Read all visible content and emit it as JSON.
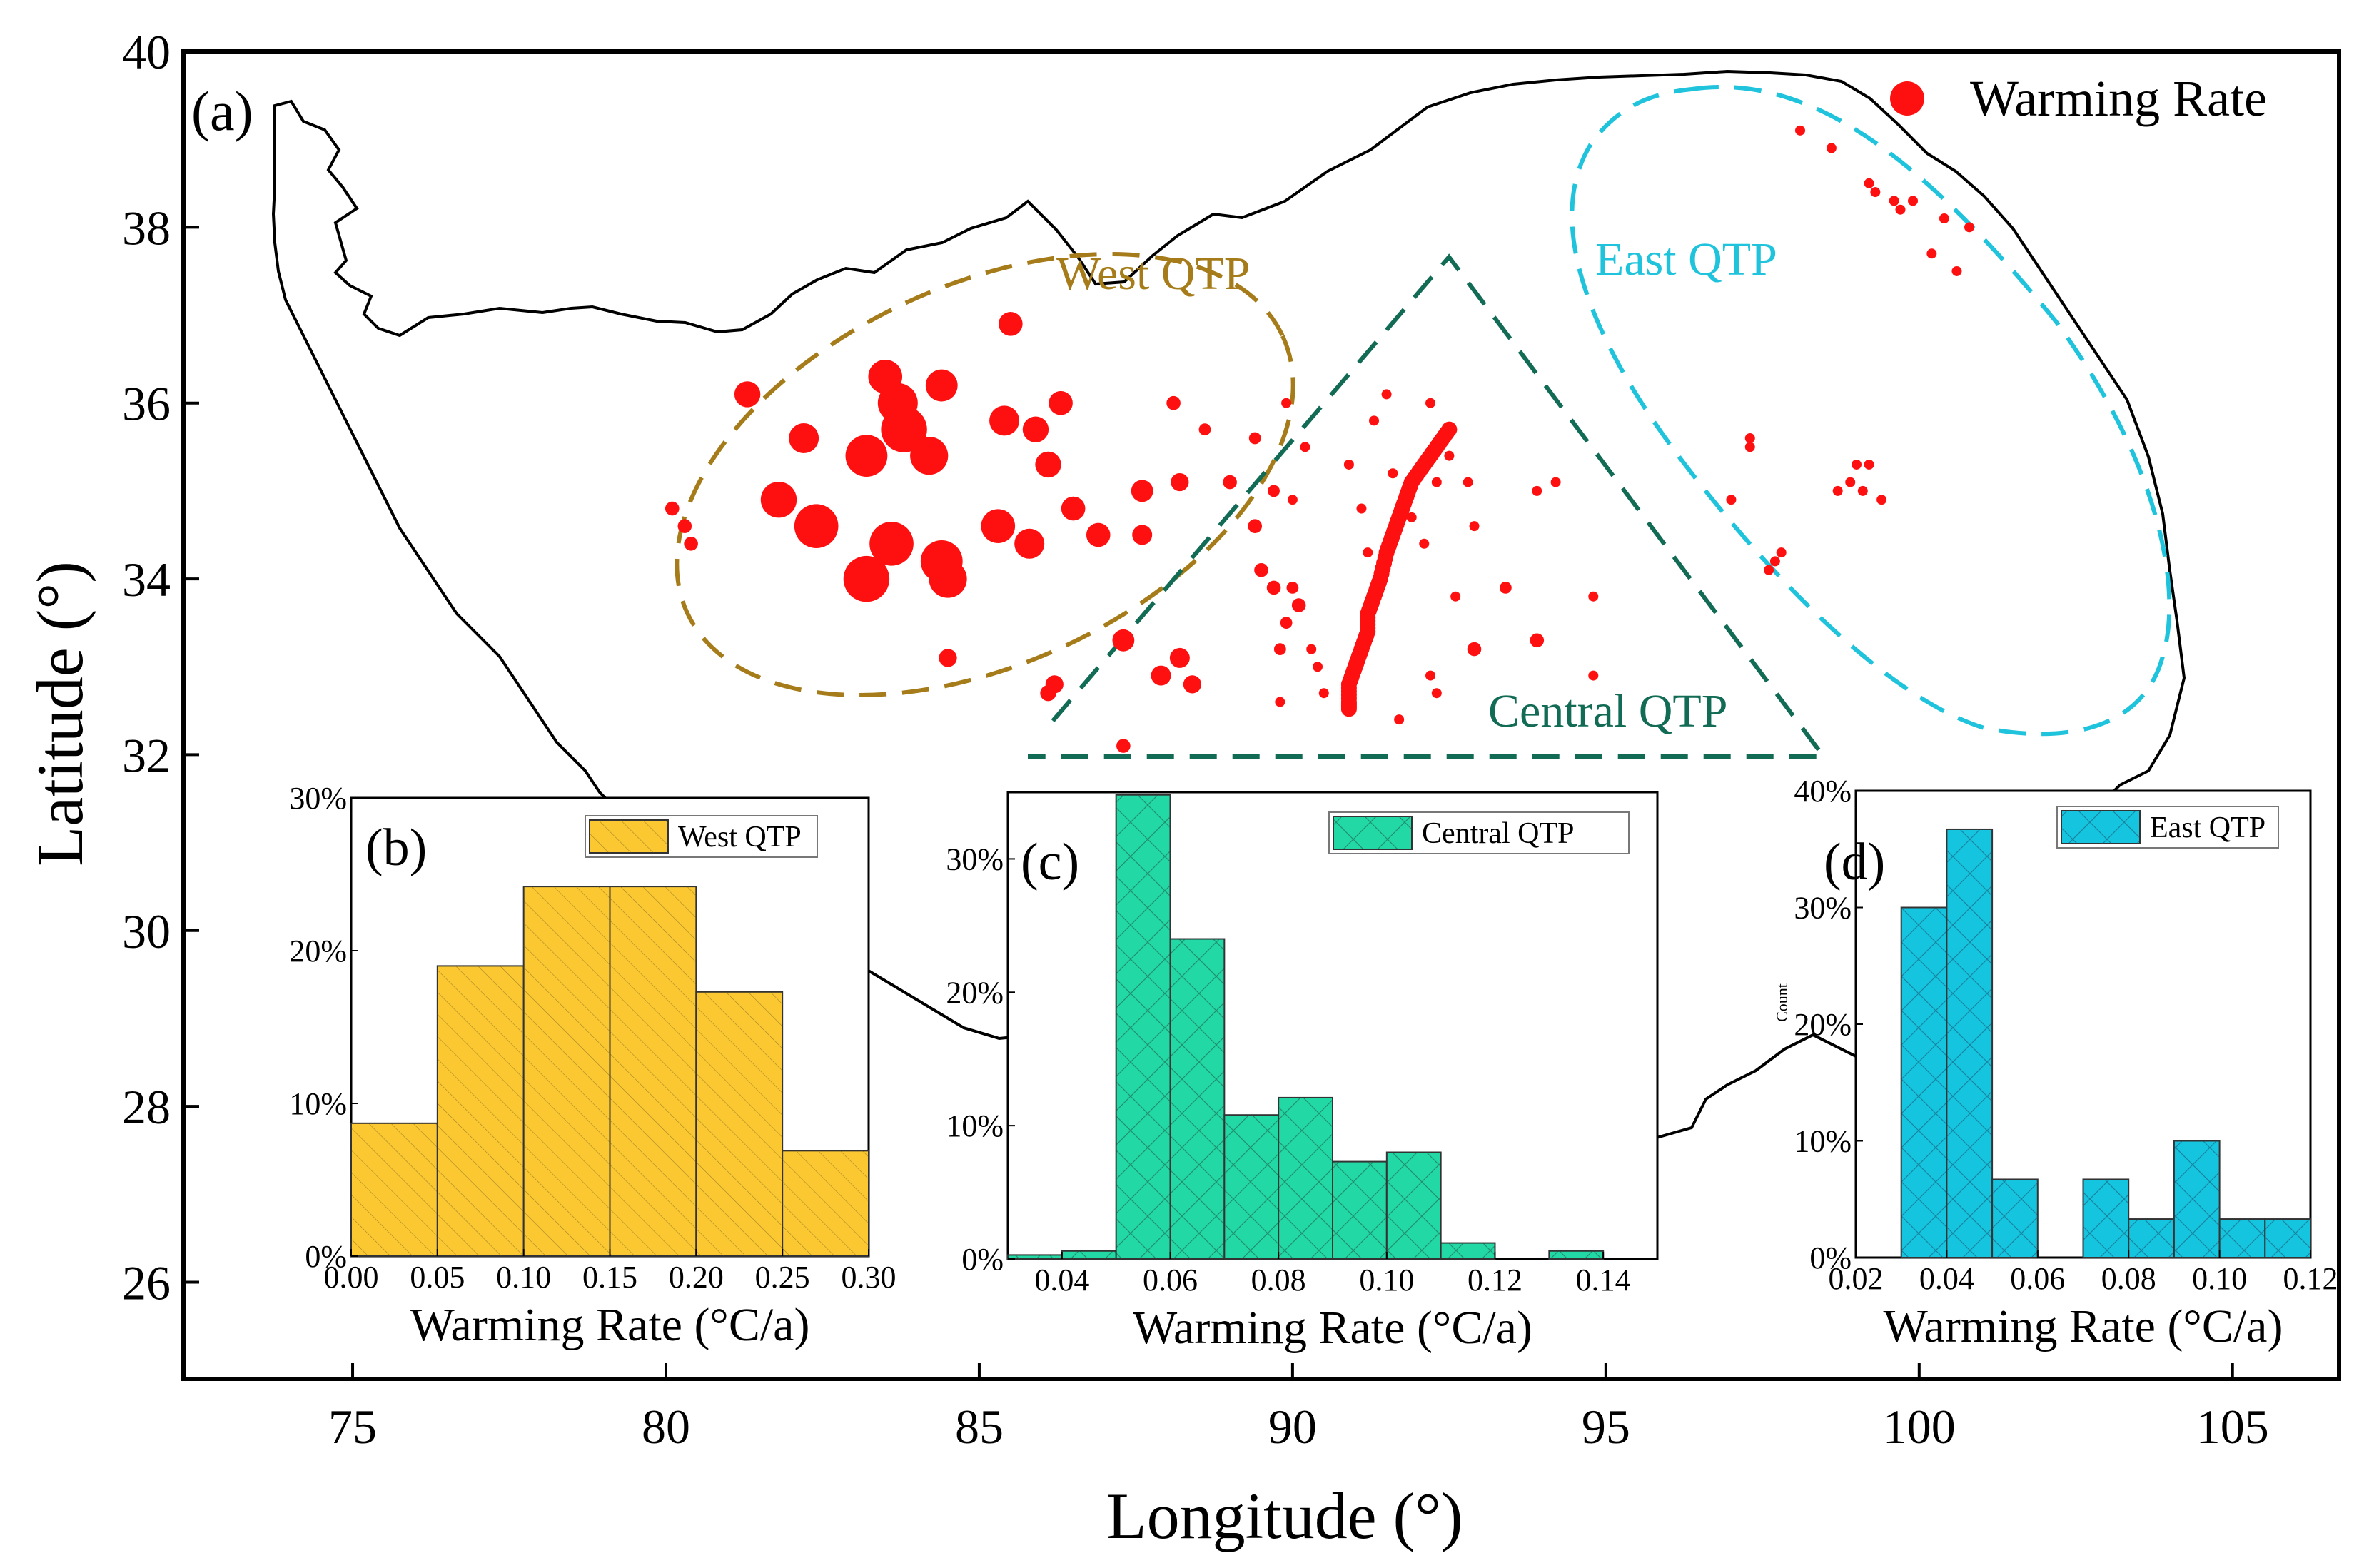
{
  "map": {
    "panel_label": "(a)",
    "xlabel": "Longitude (°)",
    "ylabel": "Latitude (°)",
    "xlim": [
      72.3,
      106.7
    ],
    "ylim": [
      24.9,
      40
    ],
    "xticks": [
      "75",
      "80",
      "85",
      "90",
      "95",
      "100",
      "105"
    ],
    "yticks": [
      "26",
      "28",
      "30",
      "32",
      "34",
      "36",
      "38",
      "40"
    ],
    "legend": "Warming Rate",
    "regions": {
      "west": "West QTP",
      "central": "Central QTP",
      "east": "East QTP"
    },
    "colors": {
      "points": "#ff1010",
      "west": "#a67c1a",
      "central": "#126b55",
      "east": "#1fc3dc"
    },
    "points": [
      {
        "lon": 81.3,
        "lat": 36.1,
        "r": 0.13
      },
      {
        "lon": 82.2,
        "lat": 35.6,
        "r": 0.15
      },
      {
        "lon": 81.8,
        "lat": 34.9,
        "r": 0.18
      },
      {
        "lon": 82.4,
        "lat": 34.6,
        "r": 0.22
      },
      {
        "lon": 83.5,
        "lat": 36.3,
        "r": 0.17
      },
      {
        "lon": 83.7,
        "lat": 36.0,
        "r": 0.2
      },
      {
        "lon": 83.8,
        "lat": 35.7,
        "r": 0.23
      },
      {
        "lon": 84.4,
        "lat": 36.2,
        "r": 0.16
      },
      {
        "lon": 83.2,
        "lat": 35.4,
        "r": 0.21
      },
      {
        "lon": 84.2,
        "lat": 35.4,
        "r": 0.19
      },
      {
        "lon": 83.6,
        "lat": 34.4,
        "r": 0.22
      },
      {
        "lon": 83.2,
        "lat": 34.0,
        "r": 0.23
      },
      {
        "lon": 84.4,
        "lat": 34.2,
        "r": 0.21
      },
      {
        "lon": 84.5,
        "lat": 34.0,
        "r": 0.19
      },
      {
        "lon": 85.3,
        "lat": 34.6,
        "r": 0.17
      },
      {
        "lon": 85.8,
        "lat": 34.4,
        "r": 0.15
      },
      {
        "lon": 85.4,
        "lat": 35.8,
        "r": 0.15
      },
      {
        "lon": 85.9,
        "lat": 35.7,
        "r": 0.13
      },
      {
        "lon": 86.3,
        "lat": 36.0,
        "r": 0.12
      },
      {
        "lon": 85.5,
        "lat": 36.9,
        "r": 0.12
      },
      {
        "lon": 86.1,
        "lat": 35.3,
        "r": 0.13
      },
      {
        "lon": 86.5,
        "lat": 34.8,
        "r": 0.12
      },
      {
        "lon": 86.9,
        "lat": 34.5,
        "r": 0.12
      },
      {
        "lon": 87.6,
        "lat": 35.0,
        "r": 0.11
      },
      {
        "lon": 87.6,
        "lat": 34.5,
        "r": 0.1
      },
      {
        "lon": 88.2,
        "lat": 35.1,
        "r": 0.09
      },
      {
        "lon": 87.3,
        "lat": 33.3,
        "r": 0.11
      },
      {
        "lon": 87.9,
        "lat": 32.9,
        "r": 0.1
      },
      {
        "lon": 88.2,
        "lat": 33.1,
        "r": 0.1
      },
      {
        "lon": 88.4,
        "lat": 32.8,
        "r": 0.09
      },
      {
        "lon": 86.2,
        "lat": 32.8,
        "r": 0.09
      },
      {
        "lon": 86.1,
        "lat": 32.7,
        "r": 0.08
      },
      {
        "lon": 87.3,
        "lat": 32.1,
        "r": 0.07
      },
      {
        "lon": 84.5,
        "lat": 33.1,
        "r": 0.09
      },
      {
        "lon": 80.1,
        "lat": 34.8,
        "r": 0.07
      },
      {
        "lon": 80.3,
        "lat": 34.6,
        "r": 0.07
      },
      {
        "lon": 80.4,
        "lat": 34.4,
        "r": 0.07
      },
      {
        "lon": 88.1,
        "lat": 36.0,
        "r": 0.07
      },
      {
        "lon": 88.6,
        "lat": 35.7,
        "r": 0.06
      },
      {
        "lon": 89.4,
        "lat": 35.6,
        "r": 0.06
      },
      {
        "lon": 89.9,
        "lat": 36.0,
        "r": 0.05
      },
      {
        "lon": 90.2,
        "lat": 35.5,
        "r": 0.05
      },
      {
        "lon": 89.0,
        "lat": 35.1,
        "r": 0.07
      },
      {
        "lon": 89.7,
        "lat": 35.0,
        "r": 0.06
      },
      {
        "lon": 90.0,
        "lat": 34.9,
        "r": 0.05
      },
      {
        "lon": 89.4,
        "lat": 34.6,
        "r": 0.07
      },
      {
        "lon": 89.5,
        "lat": 34.1,
        "r": 0.07
      },
      {
        "lon": 89.7,
        "lat": 33.9,
        "r": 0.07
      },
      {
        "lon": 90.0,
        "lat": 33.9,
        "r": 0.06
      },
      {
        "lon": 90.1,
        "lat": 33.7,
        "r": 0.07
      },
      {
        "lon": 89.9,
        "lat": 33.5,
        "r": 0.06
      },
      {
        "lon": 89.8,
        "lat": 33.2,
        "r": 0.06
      },
      {
        "lon": 90.4,
        "lat": 33.0,
        "r": 0.05
      },
      {
        "lon": 90.5,
        "lat": 32.7,
        "r": 0.05
      },
      {
        "lon": 89.8,
        "lat": 32.6,
        "r": 0.05
      },
      {
        "lon": 90.9,
        "lat": 32.8,
        "r": 0.05
      },
      {
        "lon": 90.3,
        "lat": 33.2,
        "r": 0.04
      },
      {
        "lon": 91.5,
        "lat": 36.1,
        "r": 0.03
      },
      {
        "lon": 92.2,
        "lat": 36.0,
        "r": 0.02
      },
      {
        "lon": 91.3,
        "lat": 35.8,
        "r": 0.03
      },
      {
        "lon": 90.9,
        "lat": 35.3,
        "r": 0.03
      },
      {
        "lon": 91.6,
        "lat": 35.2,
        "r": 0.03
      },
      {
        "lon": 91.1,
        "lat": 34.8,
        "r": 0.03
      },
      {
        "lon": 91.9,
        "lat": 34.7,
        "r": 0.03
      },
      {
        "lon": 92.1,
        "lat": 35.3,
        "r": 0.03
      },
      {
        "lon": 92.3,
        "lat": 35.1,
        "r": 0.03
      },
      {
        "lon": 92.5,
        "lat": 35.4,
        "r": 0.03
      },
      {
        "lon": 92.8,
        "lat": 35.1,
        "r": 0.03
      },
      {
        "lon": 91.2,
        "lat": 34.3,
        "r": 0.03
      },
      {
        "lon": 91.5,
        "lat": 34.2,
        "r": 0.03
      },
      {
        "lon": 92.1,
        "lat": 34.4,
        "r": 0.03
      },
      {
        "lon": 92.9,
        "lat": 34.6,
        "r": 0.04
      },
      {
        "lon": 93.9,
        "lat": 35.0,
        "r": 0.03
      },
      {
        "lon": 94.2,
        "lat": 35.1,
        "r": 0.03
      },
      {
        "lon": 93.4,
        "lat": 33.9,
        "r": 0.06
      },
      {
        "lon": 92.6,
        "lat": 33.8,
        "r": 0.05
      },
      {
        "lon": 92.9,
        "lat": 33.2,
        "r": 0.07
      },
      {
        "lon": 93.9,
        "lat": 33.3,
        "r": 0.07
      },
      {
        "lon": 94.8,
        "lat": 33.8,
        "r": 0.05
      },
      {
        "lon": 94.8,
        "lat": 32.9,
        "r": 0.04
      },
      {
        "lon": 92.3,
        "lat": 32.7,
        "r": 0.05
      },
      {
        "lon": 92.2,
        "lat": 32.9,
        "r": 0.05
      },
      {
        "lon": 91.7,
        "lat": 32.4,
        "r": 0.05
      },
      {
        "lon": 97.0,
        "lat": 34.9,
        "r": 0.03
      },
      {
        "lon": 97.8,
        "lat": 34.3,
        "r": 0.04
      },
      {
        "lon": 97.7,
        "lat": 34.2,
        "r": 0.04
      },
      {
        "lon": 97.6,
        "lat": 34.1,
        "r": 0.04
      },
      {
        "lon": 98.1,
        "lat": 39.1,
        "r": 0.02
      },
      {
        "lon": 98.6,
        "lat": 38.9,
        "r": 0.02
      },
      {
        "lon": 99.2,
        "lat": 38.5,
        "r": 0.02
      },
      {
        "lon": 99.3,
        "lat": 38.4,
        "r": 0.02
      },
      {
        "lon": 99.6,
        "lat": 38.3,
        "r": 0.03
      },
      {
        "lon": 99.7,
        "lat": 38.2,
        "r": 0.03
      },
      {
        "lon": 99.9,
        "lat": 38.3,
        "r": 0.02
      },
      {
        "lon": 100.4,
        "lat": 38.1,
        "r": 0.02
      },
      {
        "lon": 100.8,
        "lat": 38.0,
        "r": 0.02
      },
      {
        "lon": 100.2,
        "lat": 37.7,
        "r": 0.02
      },
      {
        "lon": 100.6,
        "lat": 37.5,
        "r": 0.02
      },
      {
        "lon": 97.3,
        "lat": 35.6,
        "r": 0.02
      },
      {
        "lon": 97.3,
        "lat": 35.5,
        "r": 0.02
      },
      {
        "lon": 98.7,
        "lat": 35.0,
        "r": 0.02
      },
      {
        "lon": 98.9,
        "lat": 35.1,
        "r": 0.02
      },
      {
        "lon": 99.0,
        "lat": 35.3,
        "r": 0.02
      },
      {
        "lon": 99.2,
        "lat": 35.3,
        "r": 0.02
      },
      {
        "lon": 99.1,
        "lat": 35.0,
        "r": 0.02
      },
      {
        "lon": 99.4,
        "lat": 34.9,
        "r": 0.02
      }
    ],
    "line_points": [
      [
        92.5,
        35.7
      ],
      [
        92.3,
        35.5
      ],
      [
        92.1,
        35.3
      ],
      [
        91.9,
        35.1
      ],
      [
        91.8,
        34.9
      ],
      [
        91.7,
        34.7
      ],
      [
        91.6,
        34.5
      ],
      [
        91.5,
        34.3
      ],
      [
        91.4,
        34.0
      ],
      [
        91.3,
        33.8
      ],
      [
        91.2,
        33.6
      ],
      [
        91.2,
        33.4
      ],
      [
        91.1,
        33.2
      ],
      [
        91.0,
        33.0
      ],
      [
        90.9,
        32.8
      ],
      [
        90.9,
        32.6
      ],
      [
        90.9,
        32.5
      ]
    ]
  },
  "insets": [
    {
      "id": "b",
      "panel_label": "(b)",
      "legend": "West QTP",
      "color": "#fbc831",
      "xlabel": "Warming Rate (°C/a)",
      "yticks": [
        "0%",
        "10%",
        "20%",
        "30%"
      ],
      "ymax": 30,
      "xticks": [
        "0.00",
        "0.05",
        "0.10",
        "0.15",
        "0.20",
        "0.25",
        "0.30"
      ],
      "xmin": 0.0,
      "xmax": 0.3,
      "bins": [
        {
          "start": 0.0,
          "end": 0.05,
          "value": 8.7
        },
        {
          "start": 0.05,
          "end": 0.1,
          "value": 19.0
        },
        {
          "start": 0.1,
          "end": 0.15,
          "value": 24.2
        },
        {
          "start": 0.15,
          "end": 0.2,
          "value": 24.2
        },
        {
          "start": 0.2,
          "end": 0.25,
          "value": 17.3
        },
        {
          "start": 0.25,
          "end": 0.3,
          "value": 6.9
        }
      ]
    },
    {
      "id": "c",
      "panel_label": "(c)",
      "legend": "Central QTP",
      "color": "#22d9a6",
      "xlabel": "Warming Rate (°C/a)",
      "yticks": [
        "0%",
        "10%",
        "20%",
        "30%"
      ],
      "ymax": 35,
      "xticks": [
        "0.04",
        "0.06",
        "0.08",
        "0.10",
        "0.12",
        "0.14"
      ],
      "xmin": 0.03,
      "xmax": 0.15,
      "bins": [
        {
          "start": 0.03,
          "end": 0.04,
          "value": 0.3
        },
        {
          "start": 0.04,
          "end": 0.05,
          "value": 0.6
        },
        {
          "start": 0.05,
          "end": 0.06,
          "value": 34.8
        },
        {
          "start": 0.06,
          "end": 0.07,
          "value": 24.0
        },
        {
          "start": 0.07,
          "end": 0.08,
          "value": 10.8
        },
        {
          "start": 0.08,
          "end": 0.09,
          "value": 12.1
        },
        {
          "start": 0.09,
          "end": 0.1,
          "value": 7.3
        },
        {
          "start": 0.1,
          "end": 0.11,
          "value": 8.0
        },
        {
          "start": 0.11,
          "end": 0.12,
          "value": 1.2
        },
        {
          "start": 0.13,
          "end": 0.14,
          "value": 0.6
        }
      ]
    },
    {
      "id": "d",
      "panel_label": "(d)",
      "legend": "East QTP",
      "color": "#15c5e0",
      "xlabel": "Warming Rate (°C/a)",
      "ylabel": "Count",
      "yticks": [
        "0%",
        "10%",
        "20%",
        "30%",
        "40%"
      ],
      "ymax": 40,
      "xticks": [
        "0.02",
        "0.04",
        "0.06",
        "0.08",
        "0.10",
        "0.12"
      ],
      "xmin": 0.02,
      "xmax": 0.12,
      "bins": [
        {
          "start": 0.03,
          "end": 0.04,
          "value": 30.0
        },
        {
          "start": 0.04,
          "end": 0.05,
          "value": 36.7
        },
        {
          "start": 0.05,
          "end": 0.06,
          "value": 6.7
        },
        {
          "start": 0.07,
          "end": 0.08,
          "value": 6.7
        },
        {
          "start": 0.08,
          "end": 0.09,
          "value": 3.3
        },
        {
          "start": 0.09,
          "end": 0.1,
          "value": 10.0
        },
        {
          "start": 0.1,
          "end": 0.11,
          "value": 3.3
        },
        {
          "start": 0.11,
          "end": 0.12,
          "value": 3.3
        }
      ]
    }
  ],
  "chart_data": [
    {
      "type": "histogram",
      "title": "(b) West QTP",
      "xlabel": "Warming Rate (°C/a)",
      "categories": [
        "0.00-0.05",
        "0.05-0.10",
        "0.10-0.15",
        "0.15-0.20",
        "0.20-0.25",
        "0.25-0.30"
      ],
      "values": [
        8.7,
        19.0,
        24.2,
        24.2,
        17.3,
        6.9
      ],
      "ylim": [
        0,
        30
      ]
    },
    {
      "type": "histogram",
      "title": "(c) Central QTP",
      "xlabel": "Warming Rate (°C/a)",
      "categories": [
        "0.03-0.04",
        "0.04-0.05",
        "0.05-0.06",
        "0.06-0.07",
        "0.07-0.08",
        "0.08-0.09",
        "0.09-0.10",
        "0.10-0.11",
        "0.11-0.12",
        "0.13-0.14"
      ],
      "values": [
        0.3,
        0.6,
        34.8,
        24.0,
        10.8,
        12.1,
        7.3,
        8.0,
        1.2,
        0.6
      ],
      "ylim": [
        0,
        35
      ]
    },
    {
      "type": "histogram",
      "title": "(d) East QTP",
      "xlabel": "Warming Rate (°C/a)",
      "ylabel": "Count",
      "categories": [
        "0.03-0.04",
        "0.04-0.05",
        "0.05-0.06",
        "0.07-0.08",
        "0.08-0.09",
        "0.09-0.10",
        "0.10-0.11",
        "0.11-0.12"
      ],
      "values": [
        30.0,
        36.7,
        6.7,
        6.7,
        3.3,
        10.0,
        3.3,
        3.3
      ],
      "ylim": [
        0,
        40
      ]
    }
  ]
}
